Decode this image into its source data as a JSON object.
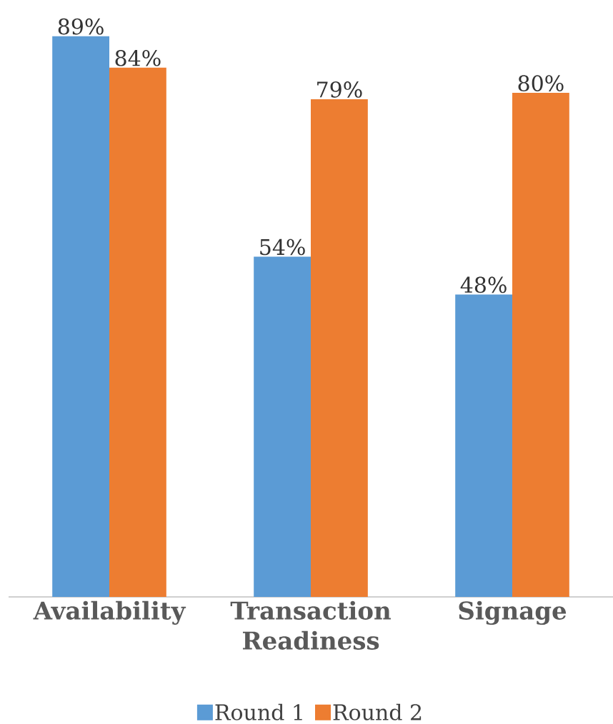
{
  "chart_data": {
    "type": "bar",
    "categories": [
      "Availability",
      "Transaction Readiness",
      "Signage"
    ],
    "series": [
      {
        "name": "Round 1",
        "color": "#5b9bd5",
        "values": [
          89,
          54,
          48
        ],
        "value_labels": [
          "89%",
          "54%",
          "48%"
        ]
      },
      {
        "name": "Round 2",
        "color": "#ed7d31",
        "values": [
          84,
          79,
          80
        ],
        "value_labels": [
          "84%",
          "79%",
          "80%"
        ]
      }
    ],
    "tick_labels": "x",
    "legend": "bottom"
  }
}
